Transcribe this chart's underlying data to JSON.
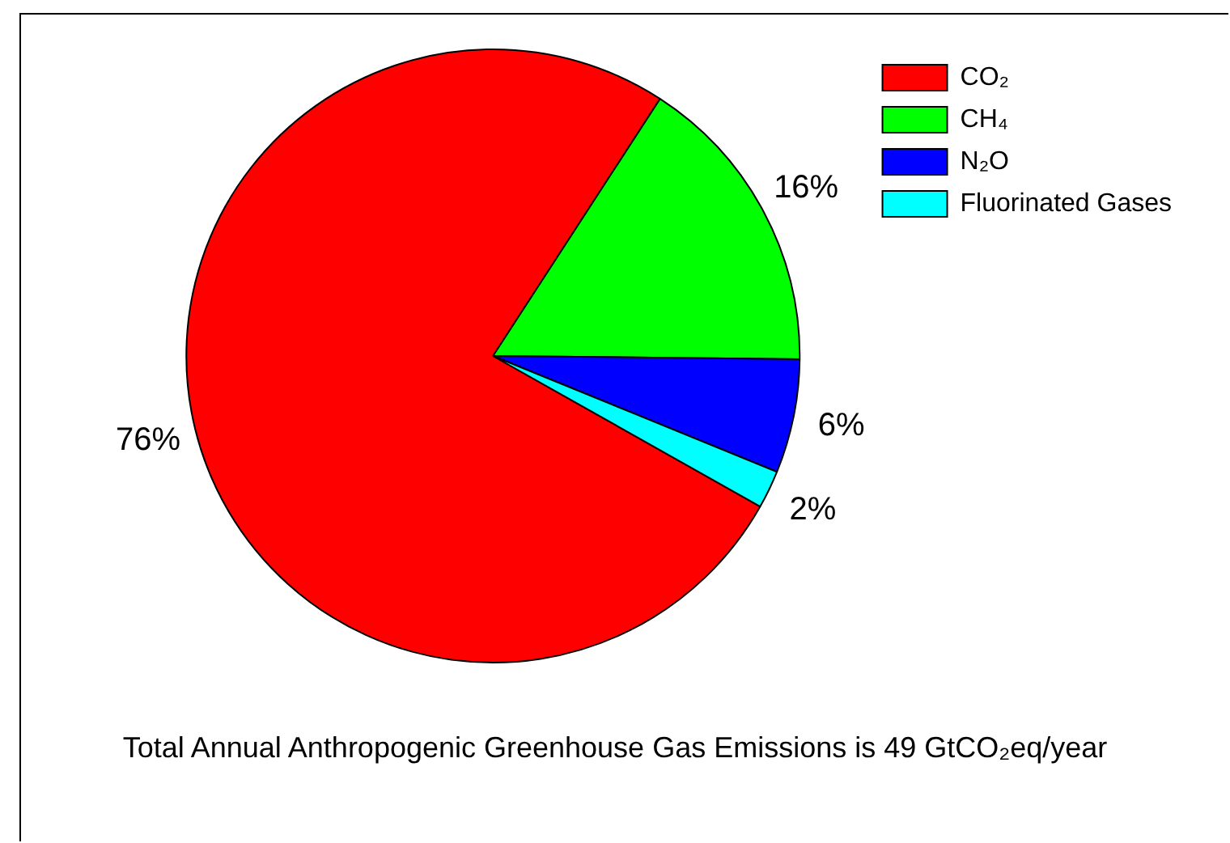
{
  "chart_data": {
    "type": "pie",
    "categories": [
      "CO₂",
      "CH₄",
      "N₂O",
      "Fluorinated Gases"
    ],
    "values": [
      76,
      16,
      6,
      2
    ],
    "colors": [
      "#ff0000",
      "#00ff00",
      "#0000ff",
      "#00ffff"
    ],
    "value_labels": [
      "76%",
      "16%",
      "6%",
      "2%"
    ],
    "legend": "top right",
    "annotations": [
      "Total Annual Anthropogenic Greenhouse Gas Emissions is 49 GtCO₂eq/year"
    ]
  }
}
